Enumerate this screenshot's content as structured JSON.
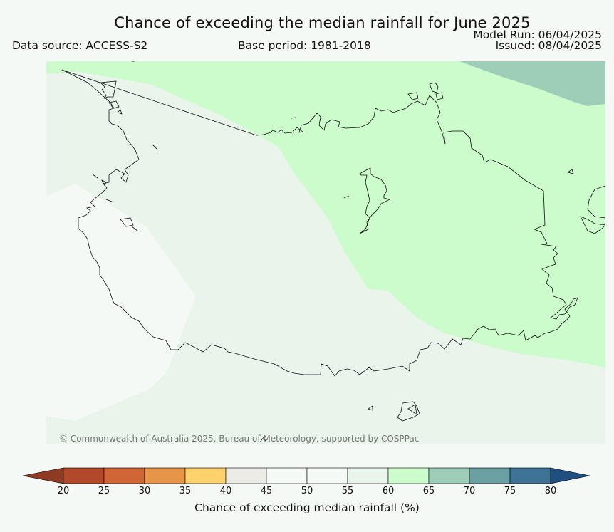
{
  "header": {
    "title": "Chance of exceeding the median rainfall for June 2025",
    "data_source": "Data source: ACCESS-S2",
    "base_period": "Base period: 1981-2018",
    "model_run": "Model Run: 06/04/2025",
    "issued": "Issued: 08/04/2025"
  },
  "credit": "© Commonwealth of Australia 2025, Bureau of Meteorology, supported by COSPPac",
  "colorbar": {
    "label": "Chance of exceeding median rainfall (%)",
    "ticks": [
      "20",
      "25",
      "30",
      "35",
      "40",
      "45",
      "50",
      "55",
      "60",
      "65",
      "70",
      "75",
      "80"
    ],
    "under_color": "#8f3a22",
    "over_color": "#1f4f80",
    "bins": [
      {
        "from": 20,
        "to": 25,
        "color": "#b24a29"
      },
      {
        "from": 25,
        "to": 30,
        "color": "#d06536"
      },
      {
        "from": 30,
        "to": 35,
        "color": "#e69549"
      },
      {
        "from": 35,
        "to": 40,
        "color": "#ffd26d"
      },
      {
        "from": 40,
        "to": 45,
        "color": "#ecebe6"
      },
      {
        "from": 45,
        "to": 50,
        "color": "#f5f9f5"
      },
      {
        "from": 50,
        "to": 55,
        "color": "#f5f9f5"
      },
      {
        "from": 55,
        "to": 60,
        "color": "#e9f4ea"
      },
      {
        "from": 60,
        "to": 65,
        "color": "#ccfbcc"
      },
      {
        "from": 65,
        "to": 70,
        "color": "#9dcfb8"
      },
      {
        "from": 70,
        "to": 75,
        "color": "#6ba0a3"
      },
      {
        "from": 75,
        "to": 80,
        "color": "#3e7397"
      }
    ]
  },
  "map_colors": {
    "bg_45_55": "#e9f4ea",
    "low_45_50": "#f5f9f5",
    "mid_60_65": "#ccfbcc",
    "high_65_70": "#9dcfb8",
    "outline": "#111111"
  }
}
